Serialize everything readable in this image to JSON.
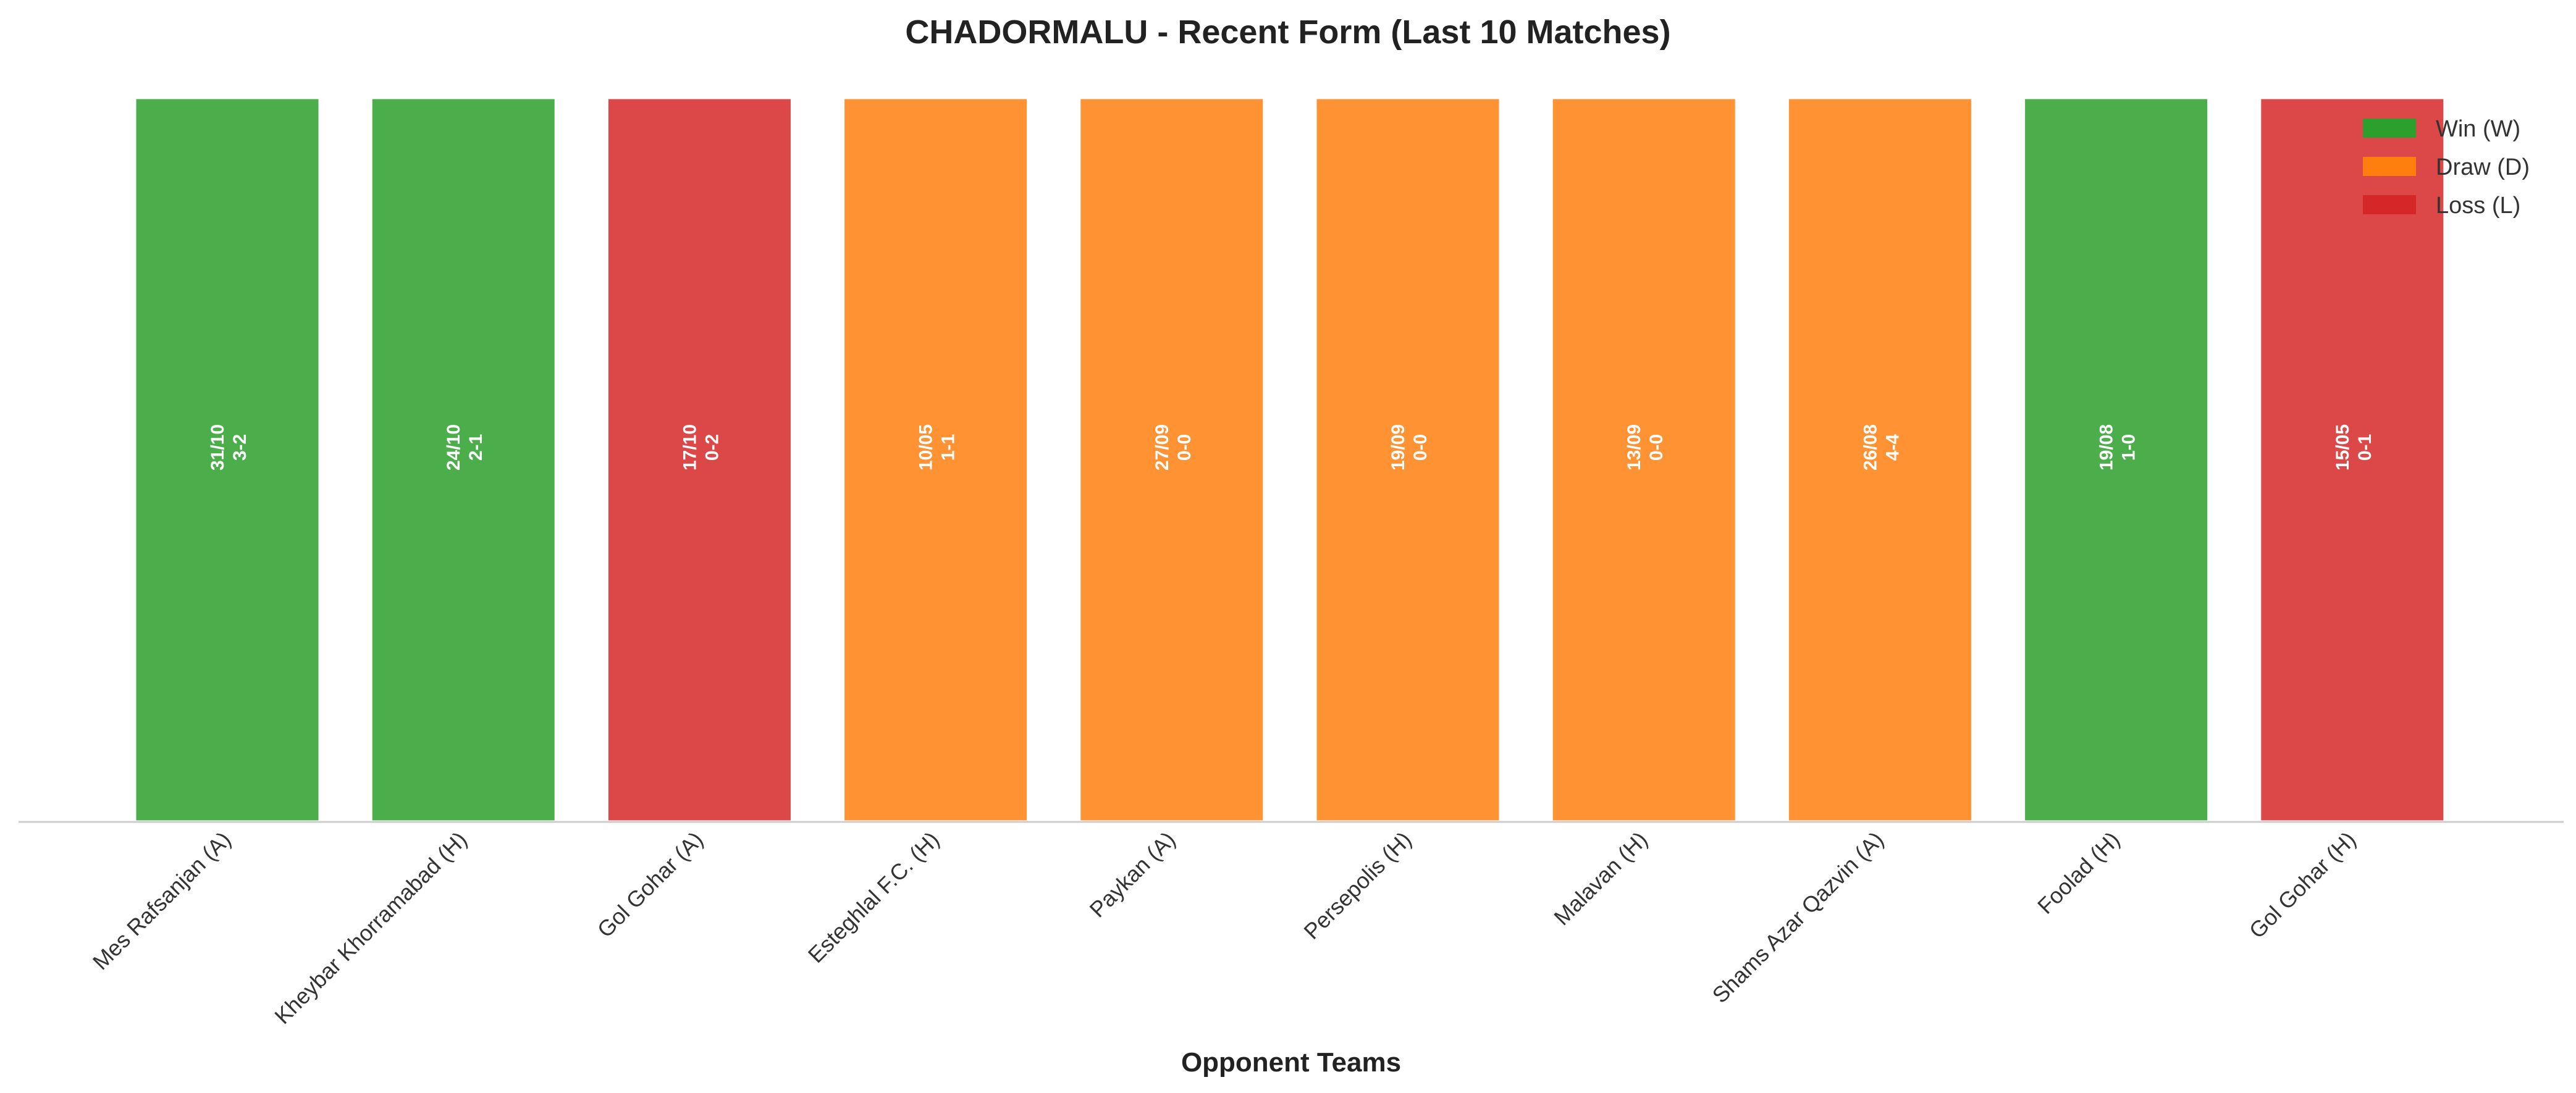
{
  "chart_data": {
    "type": "bar",
    "title": "CHADORMALU - Recent Form (Last 10 Matches)",
    "xlabel": "Opponent Teams",
    "ylabel": "",
    "grid": false,
    "legend_position": "top-right",
    "categories": [
      "Mes Rafsanjan (A)",
      "Kheybar Khorramabad (H)",
      "Gol Gohar (A)",
      "Esteghlal F.C. (H)",
      "Paykan (A)",
      "Persepolis (H)",
      "Malavan (H)",
      "Shams Azar Qazvin (A)",
      "Foolad (H)",
      "Gol Gohar (H)"
    ],
    "values": [
      1,
      1,
      1,
      1,
      1,
      1,
      1,
      1,
      1,
      1
    ],
    "ylim": [
      0,
      1
    ],
    "results": [
      "W",
      "W",
      "L",
      "D",
      "D",
      "D",
      "D",
      "D",
      "W",
      "L"
    ],
    "dates": [
      "31/10",
      "24/10",
      "17/10",
      "10/05",
      "27/09",
      "19/09",
      "13/09",
      "26/08",
      "19/08",
      "15/05"
    ],
    "scores": [
      "3-2",
      "2-1",
      "0-2",
      "1-1",
      "0-0",
      "0-0",
      "0-0",
      "4-4",
      "1-0",
      "0-1"
    ],
    "legend": [
      {
        "key": "W",
        "label": "Win (W)",
        "color": "#2ca02c"
      },
      {
        "key": "D",
        "label": "Draw (D)",
        "color": "#ff7f0e"
      },
      {
        "key": "L",
        "label": "Loss (L)",
        "color": "#d62728"
      }
    ]
  }
}
